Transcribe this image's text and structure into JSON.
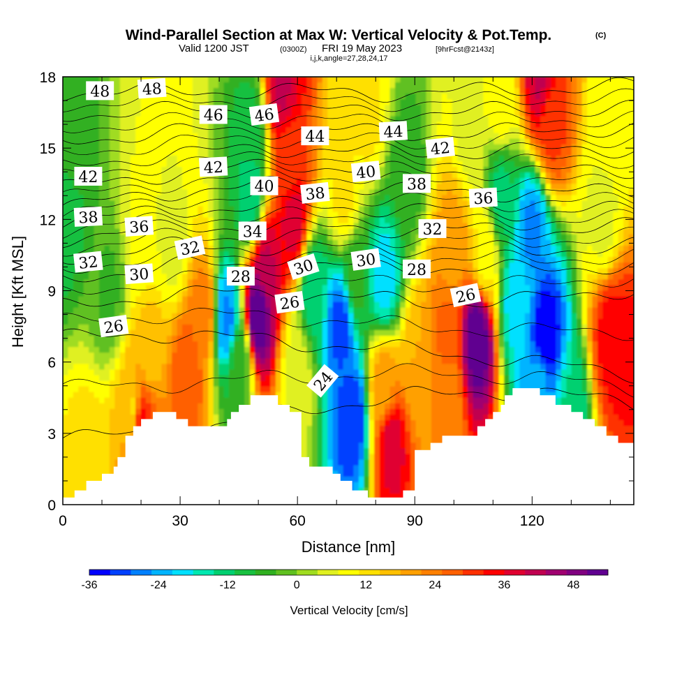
{
  "title": {
    "main": "Wind-Parallel Section at Max W: Vertical Velocity & Pot.Temp.",
    "copyright": "(C)",
    "valid_prefix": "Valid 1200 JST",
    "valid_utc": "(0300Z)",
    "valid_date": "FRI 19 May 2023",
    "forecast_info": "[9hrFcst@2143z]",
    "indices": "i,j,k,angle=27,28,24,17"
  },
  "chart_data": {
    "type": "heatmap",
    "xlabel": "Distance [nm]",
    "ylabel": "Height [Kft MSL]",
    "xlim": [
      0,
      146
    ],
    "ylim": [
      0,
      18
    ],
    "x_ticks": [
      "0",
      "30",
      "60",
      "90",
      "120"
    ],
    "x_tick_values": [
      0,
      30,
      60,
      90,
      120
    ],
    "y_ticks": [
      "0",
      "3",
      "6",
      "9",
      "12",
      "15",
      "18"
    ],
    "y_tick_values": [
      0,
      3,
      6,
      9,
      12,
      15,
      18
    ],
    "colorbar": {
      "label": "Vertical Velocity [cm/s]",
      "range": [
        -36,
        54
      ],
      "ticks": [
        "-36",
        "-24",
        "-12",
        "0",
        "12",
        "24",
        "36",
        "48"
      ],
      "tick_values": [
        -36,
        -24,
        -12,
        0,
        12,
        24,
        36,
        48
      ],
      "colors": [
        "#0000ff",
        "#0040ff",
        "#0080ff",
        "#00b4ff",
        "#00e0ff",
        "#00e8b0",
        "#00d070",
        "#18c040",
        "#30b020",
        "#60c020",
        "#a0dc20",
        "#e0f020",
        "#ffff00",
        "#ffe000",
        "#ffc000",
        "#ffa000",
        "#ff8000",
        "#ff6000",
        "#ff3000",
        "#ff0000",
        "#e00030",
        "#c00050",
        "#a00070",
        "#800080",
        "#600090"
      ]
    },
    "vertical_velocity_features": [
      {
        "x": 0,
        "z": 12.5,
        "w": -10
      },
      {
        "x": 2,
        "z": 15,
        "w": -6
      },
      {
        "x": 6,
        "z": 2,
        "w": 12
      },
      {
        "x": 18,
        "z": 4,
        "w": 14
      },
      {
        "x": 20,
        "z": 3.5,
        "w": 34
      },
      {
        "x": 22,
        "z": 6.5,
        "w": 16
      },
      {
        "x": 20,
        "z": 11,
        "w": 8
      },
      {
        "x": 28,
        "z": 11,
        "w": 6
      },
      {
        "x": 12,
        "z": 9,
        "w": -4
      },
      {
        "x": 32,
        "z": 5.5,
        "w": 28
      },
      {
        "x": 36,
        "z": 8,
        "w": 24
      },
      {
        "x": 42,
        "z": 7.8,
        "w": -26
      },
      {
        "x": 45,
        "z": 6,
        "w": -6
      },
      {
        "x": 50,
        "z": 8,
        "w": 54
      },
      {
        "x": 52,
        "z": 10,
        "w": 40
      },
      {
        "x": 48,
        "z": 13,
        "w": -14
      },
      {
        "x": 48,
        "z": 15.5,
        "w": -10
      },
      {
        "x": 58,
        "z": 14.5,
        "w": 30
      },
      {
        "x": 59,
        "z": 12,
        "w": 38
      },
      {
        "x": 56,
        "z": 17.5,
        "w": 40
      },
      {
        "x": 60,
        "z": 5.5,
        "w": 6
      },
      {
        "x": 64,
        "z": 9,
        "w": -14
      },
      {
        "x": 71,
        "z": 7.5,
        "w": -30
      },
      {
        "x": 74,
        "z": 3.6,
        "w": -32
      },
      {
        "x": 75,
        "z": 9.5,
        "w": -6
      },
      {
        "x": 72,
        "z": 13,
        "w": 12
      },
      {
        "x": 78,
        "z": 16.5,
        "w": 12
      },
      {
        "x": 84,
        "z": 2.5,
        "w": 38
      },
      {
        "x": 82,
        "z": 5,
        "w": 20
      },
      {
        "x": 82,
        "z": 9.5,
        "w": -20
      },
      {
        "x": 88,
        "z": 14,
        "w": -6
      },
      {
        "x": 91,
        "z": 6,
        "w": 18
      },
      {
        "x": 98,
        "z": 4.5,
        "w": 22
      },
      {
        "x": 98,
        "z": 7,
        "w": 26
      },
      {
        "x": 100,
        "z": 11,
        "w": 20
      },
      {
        "x": 104,
        "z": 15.5,
        "w": 6
      },
      {
        "x": 106,
        "z": 7,
        "w": 54
      },
      {
        "x": 108,
        "z": 10.5,
        "w": 10
      },
      {
        "x": 112,
        "z": 13,
        "w": -12
      },
      {
        "x": 112,
        "z": 17,
        "w": 10
      },
      {
        "x": 116,
        "z": 8.5,
        "w": -20
      },
      {
        "x": 120,
        "z": 11.5,
        "w": -26
      },
      {
        "x": 123.5,
        "z": 7,
        "w": -36
      },
      {
        "x": 122,
        "z": 5,
        "w": -24
      },
      {
        "x": 130,
        "z": 4,
        "w": -14
      },
      {
        "x": 125,
        "z": 16,
        "w": 30
      },
      {
        "x": 122,
        "z": 18,
        "w": 40
      },
      {
        "x": 140,
        "z": 7,
        "w": 34
      },
      {
        "x": 143,
        "z": 6.5,
        "w": 34
      },
      {
        "x": 138,
        "z": 12,
        "w": 6
      },
      {
        "x": 140,
        "z": 16,
        "w": 8
      }
    ],
    "terrain_profile": [
      [
        0,
        0.3
      ],
      [
        3,
        0.3
      ],
      [
        3,
        0.6
      ],
      [
        6,
        0.6
      ],
      [
        6,
        1.0
      ],
      [
        10,
        1.0
      ],
      [
        10,
        1.3
      ],
      [
        13,
        1.3
      ],
      [
        13,
        1.6
      ],
      [
        14,
        1.6
      ],
      [
        14,
        2.0
      ],
      [
        16,
        2.0
      ],
      [
        16,
        2.9
      ],
      [
        18,
        2.9
      ],
      [
        18,
        3.3
      ],
      [
        20,
        3.3
      ],
      [
        20,
        3.6
      ],
      [
        23,
        3.6
      ],
      [
        23,
        3.9
      ],
      [
        29,
        3.9
      ],
      [
        29,
        3.6
      ],
      [
        32,
        3.6
      ],
      [
        32,
        3.3
      ],
      [
        42,
        3.3
      ],
      [
        42,
        3.6
      ],
      [
        43,
        3.6
      ],
      [
        43,
        3.9
      ],
      [
        45,
        3.9
      ],
      [
        45,
        4.2
      ],
      [
        48,
        4.2
      ],
      [
        48,
        4.6
      ],
      [
        55,
        4.6
      ],
      [
        55,
        4.2
      ],
      [
        58,
        4.2
      ],
      [
        58,
        3.9
      ],
      [
        61,
        3.9
      ],
      [
        61,
        2.0
      ],
      [
        63,
        2.0
      ],
      [
        63,
        1.6
      ],
      [
        69,
        1.6
      ],
      [
        69,
        1.3
      ],
      [
        71,
        1.3
      ],
      [
        71,
        1.0
      ],
      [
        74,
        1.0
      ],
      [
        74,
        0.6
      ],
      [
        78,
        0.6
      ],
      [
        78,
        0.3
      ],
      [
        87,
        0.3
      ],
      [
        87,
        0.6
      ],
      [
        90,
        0.6
      ],
      [
        90,
        2.3
      ],
      [
        94,
        2.3
      ],
      [
        94,
        2.6
      ],
      [
        97,
        2.6
      ],
      [
        97,
        2.9
      ],
      [
        106,
        2.9
      ],
      [
        106,
        3.3
      ],
      [
        108,
        3.3
      ],
      [
        108,
        3.6
      ],
      [
        110,
        3.6
      ],
      [
        110,
        3.9
      ],
      [
        112,
        3.9
      ],
      [
        112,
        4.2
      ],
      [
        113,
        4.2
      ],
      [
        113,
        4.6
      ],
      [
        115,
        4.6
      ],
      [
        115,
        4.9
      ],
      [
        122,
        4.9
      ],
      [
        122,
        4.6
      ],
      [
        126,
        4.6
      ],
      [
        126,
        4.2
      ],
      [
        130,
        4.2
      ],
      [
        130,
        3.9
      ],
      [
        133,
        3.9
      ],
      [
        133,
        3.6
      ],
      [
        136,
        3.6
      ],
      [
        136,
        3.3
      ],
      [
        139,
        3.3
      ],
      [
        139,
        2.9
      ],
      [
        142,
        2.9
      ],
      [
        142,
        2.6
      ],
      [
        146,
        2.6
      ]
    ],
    "isentrope_levels": [
      24,
      26,
      28,
      30,
      32,
      34,
      36,
      38,
      40,
      42,
      44,
      46,
      48
    ],
    "isentrope_anchor_points": [
      {
        "x": 0,
        "zs": [
          2.8,
          7.0,
          8.3,
          9.5,
          10.4,
          11.2,
          11.9,
          12.5,
          13.3,
          14.2,
          15.3,
          16.4,
          17.3
        ]
      },
      {
        "x": 30,
        "zs": [
          3.0,
          7.2,
          8.9,
          10.1,
          10.9,
          11.7,
          12.4,
          13.2,
          14.0,
          14.8,
          15.7,
          16.6,
          17.4
        ]
      },
      {
        "x": 60,
        "zs": [
          4.0,
          6.8,
          8.9,
          10.0,
          10.8,
          11.7,
          12.6,
          13.5,
          14.3,
          15.0,
          15.8,
          16.6,
          17.4
        ]
      },
      {
        "x": 90,
        "zs": [
          4.6,
          6.5,
          8.5,
          10.0,
          10.8,
          11.6,
          12.4,
          13.2,
          14.0,
          14.8,
          15.6,
          16.5,
          17.3
        ]
      },
      {
        "x": 120,
        "zs": [
          4.8,
          6.0,
          8.6,
          9.9,
          10.7,
          11.5,
          12.3,
          13.1,
          14.0,
          14.9,
          15.7,
          16.6,
          17.5
        ]
      },
      {
        "x": 146,
        "zs": [
          4.2,
          5.5,
          9.1,
          10.1,
          10.9,
          11.7,
          12.4,
          13.2,
          14.1,
          15.0,
          15.9,
          16.7,
          17.6
        ]
      }
    ],
    "contour_labels": [
      {
        "text": "48",
        "x": 9.5,
        "z": 17.4,
        "angle": 0
      },
      {
        "text": "48",
        "x": 22.8,
        "z": 17.5,
        "angle": -4
      },
      {
        "text": "46",
        "x": 38.5,
        "z": 16.4,
        "angle": 0
      },
      {
        "text": "46",
        "x": 51.5,
        "z": 16.4,
        "angle": -8
      },
      {
        "text": "44",
        "x": 64.5,
        "z": 15.5,
        "angle": 0
      },
      {
        "text": "44",
        "x": 84.5,
        "z": 15.7,
        "angle": -3
      },
      {
        "text": "42",
        "x": 6.5,
        "z": 13.8,
        "angle": 0
      },
      {
        "text": "42",
        "x": 38.5,
        "z": 14.2,
        "angle": -3
      },
      {
        "text": "42",
        "x": 96.5,
        "z": 15.0,
        "angle": -6
      },
      {
        "text": "40",
        "x": 51.5,
        "z": 13.4,
        "angle": 0
      },
      {
        "text": "40",
        "x": 77.5,
        "z": 14.0,
        "angle": -6
      },
      {
        "text": "38",
        "x": 6.5,
        "z": 12.1,
        "angle": -3
      },
      {
        "text": "38",
        "x": 64.5,
        "z": 13.1,
        "angle": -6
      },
      {
        "text": "38",
        "x": 90.5,
        "z": 13.5,
        "angle": 0
      },
      {
        "text": "36",
        "x": 19.5,
        "z": 11.7,
        "angle": -4
      },
      {
        "text": "36",
        "x": 107.5,
        "z": 12.9,
        "angle": -3
      },
      {
        "text": "34",
        "x": 48.5,
        "z": 11.5,
        "angle": 0
      },
      {
        "text": "32",
        "x": 6.5,
        "z": 10.2,
        "angle": -6
      },
      {
        "text": "32",
        "x": 32.5,
        "z": 10.8,
        "angle": -12
      },
      {
        "text": "32",
        "x": 94.5,
        "z": 11.6,
        "angle": 0
      },
      {
        "text": "30",
        "x": 19.5,
        "z": 9.7,
        "angle": -4
      },
      {
        "text": "30",
        "x": 61.5,
        "z": 10.0,
        "angle": -18
      },
      {
        "text": "30",
        "x": 77.5,
        "z": 10.3,
        "angle": -8
      },
      {
        "text": "28",
        "x": 45.5,
        "z": 9.6,
        "angle": 0
      },
      {
        "text": "28",
        "x": 90.5,
        "z": 9.9,
        "angle": 0
      },
      {
        "text": "26",
        "x": 13.0,
        "z": 7.5,
        "angle": -8
      },
      {
        "text": "26",
        "x": 58.0,
        "z": 8.5,
        "angle": -8
      },
      {
        "text": "26",
        "x": 103.0,
        "z": 8.8,
        "angle": -12
      },
      {
        "text": "24",
        "x": 66.5,
        "z": 5.2,
        "angle": -50
      }
    ]
  }
}
